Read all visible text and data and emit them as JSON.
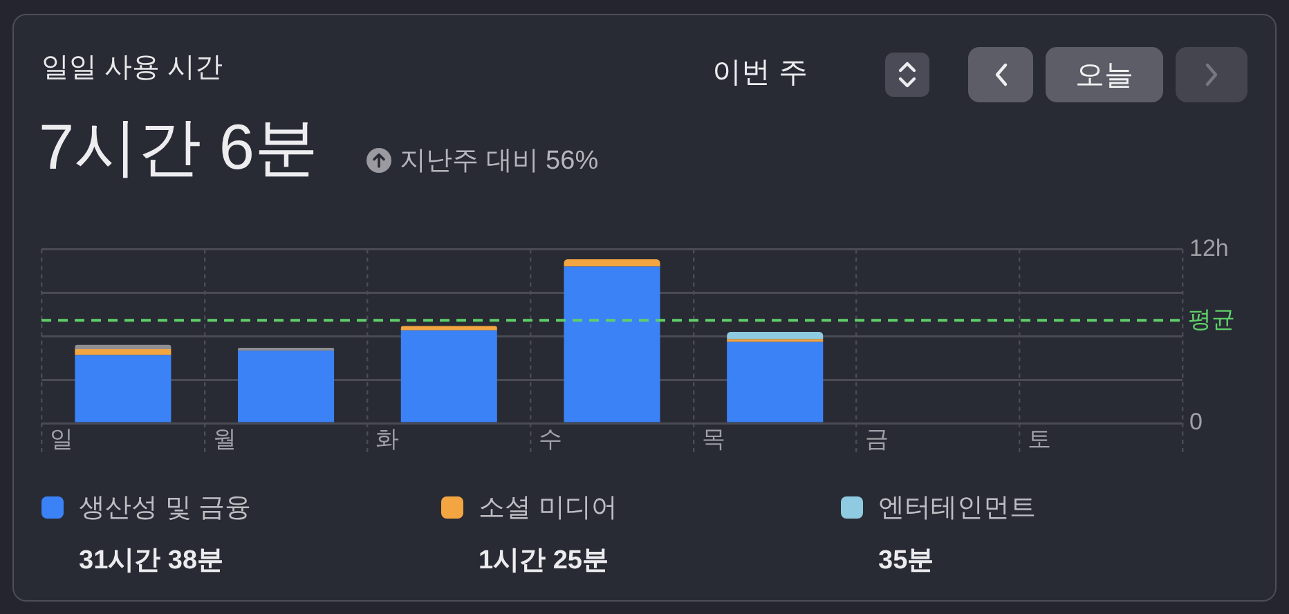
{
  "chart_data": {
    "type": "bar",
    "title": "일일 사용 시간",
    "subtitle": "7시간 6분",
    "categories": [
      "일",
      "월",
      "화",
      "수",
      "목",
      "금",
      "토"
    ],
    "series": [
      {
        "name": "생산성 및 금융",
        "color": "#3b82f6",
        "values": [
          4.7,
          5.0,
          6.4,
          10.8,
          5.6,
          null,
          null
        ]
      },
      {
        "name": "소셜 미디어",
        "color": "#f2a541",
        "values": [
          0.4,
          null,
          0.3,
          0.5,
          0.2,
          null,
          null
        ]
      },
      {
        "name": "엔터테인먼트",
        "color": "#8ecae0",
        "values": [
          null,
          null,
          null,
          null,
          0.5,
          null,
          null
        ]
      },
      {
        "color": "#8e8e93",
        "values": [
          0.3,
          0.2,
          null,
          null,
          null,
          null,
          null
        ]
      }
    ],
    "stacked": true,
    "ylim": [
      0,
      12
    ],
    "yticks": [
      0,
      {
        "value": 3,
        "label": null
      },
      {
        "value": 6,
        "label": null
      },
      {
        "value": 9,
        "label": null
      },
      {
        "value": 12,
        "label": "12h"
      }
    ],
    "grid": true,
    "legend": "bottom",
    "ref_lines": [
      {
        "axis": "y",
        "value": 7.1,
        "label": "평균",
        "color": "#5fd068",
        "line_style": "dashed"
      }
    ],
    "annotations": [
      "지난주 대비 56%",
      "이번 주",
      "오늘",
      "31시간 38분",
      "1시간 25분",
      "35분"
    ]
  }
}
